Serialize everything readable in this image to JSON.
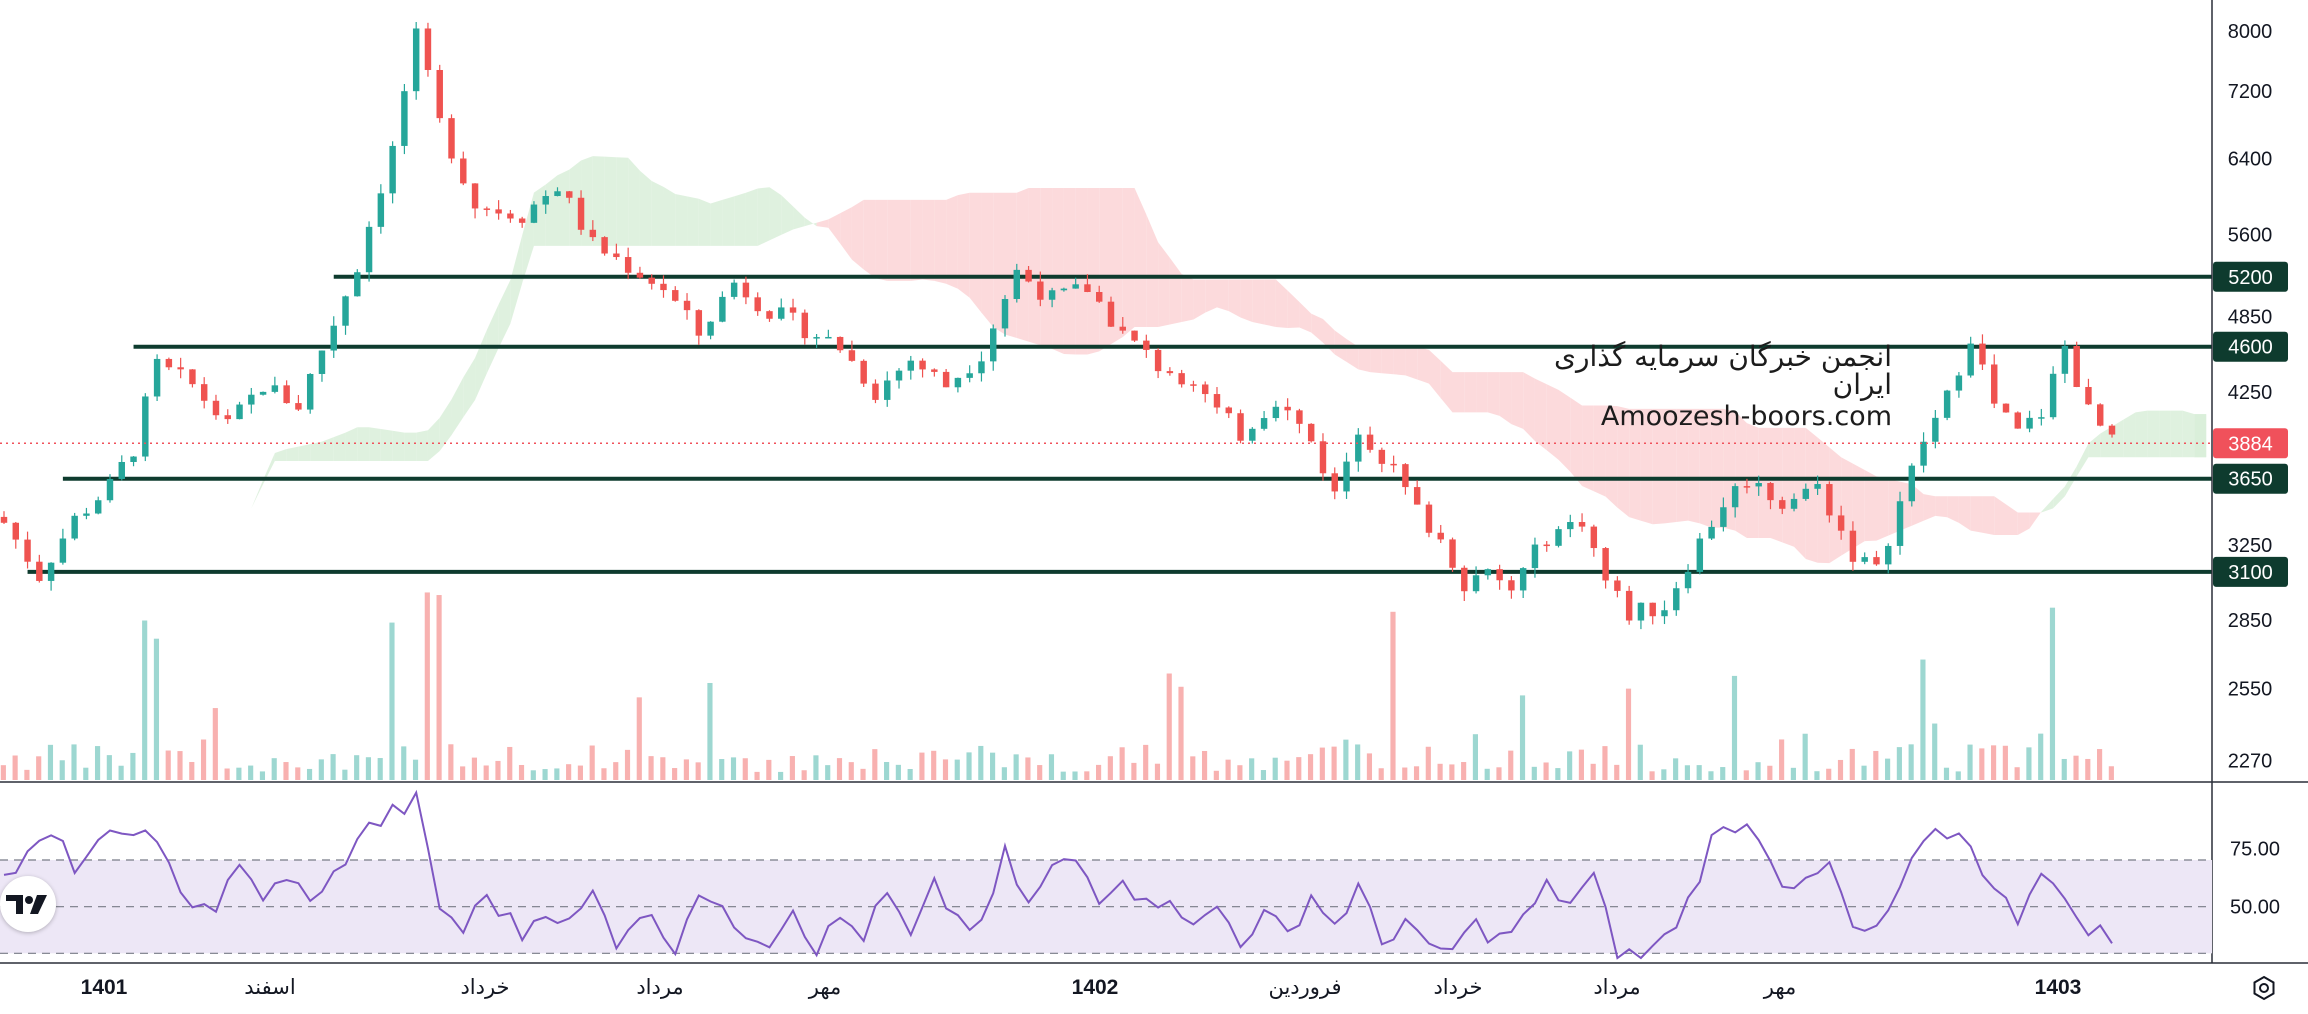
{
  "watermark": {
    "persian": "انجمن خبرگان سرمایه گذاری ایران",
    "english": "Amoozesh-boors.com"
  },
  "icons": {
    "logo": "tradingview-logo-icon",
    "settings": "settings-hexagon-icon"
  },
  "colors": {
    "up": "#26a69a",
    "down": "#ef5350",
    "level_line": "#0e3b2e",
    "price_tag": "#f0515b",
    "rsi_line": "#7e57c2",
    "rsi_band": "#ede7f6",
    "cloud_bull": "#d9eed9",
    "cloud_bear": "#fbd3d6"
  },
  "chart_data": [
    {
      "type": "candlestick",
      "title": "",
      "y_scale": "log",
      "ylim": [
        2800,
        8300
      ],
      "price_axis_ticks": [
        8000,
        7200,
        6400,
        5600,
        4850,
        4250,
        3250,
        2850,
        2550,
        2270
      ],
      "time_axis_labels": [
        "1401",
        "اسفند",
        "خرداد",
        "مرداد",
        "مهر",
        "1402",
        "فروردین",
        "خرداد",
        "مرداد",
        "مهر",
        "1403"
      ],
      "current_price": 3884,
      "horizontal_levels": [
        {
          "label": "5200",
          "value": 5200,
          "start_index": 28
        },
        {
          "label": "4600",
          "value": 4600,
          "start_index": 11
        },
        {
          "label": "3650",
          "value": 3650,
          "start_index": 5
        },
        {
          "label": "3100",
          "value": 3100,
          "start_index": 2
        }
      ],
      "overlays": [
        "ichimoku cloud",
        "volume histogram"
      ],
      "price_path_anchors": [
        [
          0,
          3380
        ],
        [
          3,
          3080
        ],
        [
          6,
          3400
        ],
        [
          9,
          3600
        ],
        [
          11,
          3850
        ],
        [
          13,
          4450
        ],
        [
          16,
          4300
        ],
        [
          19,
          4000
        ],
        [
          22,
          4300
        ],
        [
          25,
          4150
        ],
        [
          28,
          4800
        ],
        [
          30,
          5300
        ],
        [
          33,
          6500
        ],
        [
          35,
          7900
        ],
        [
          37,
          6800
        ],
        [
          40,
          5900
        ],
        [
          44,
          5800
        ],
        [
          47,
          6100
        ],
        [
          50,
          5500
        ],
        [
          53,
          5300
        ],
        [
          56,
          5100
        ],
        [
          59,
          4700
        ],
        [
          62,
          5150
        ],
        [
          65,
          4900
        ],
        [
          68,
          4750
        ],
        [
          71,
          4600
        ],
        [
          74,
          4250
        ],
        [
          77,
          4500
        ],
        [
          80,
          4300
        ],
        [
          83,
          4550
        ],
        [
          86,
          5250
        ],
        [
          89,
          5000
        ],
        [
          92,
          5100
        ],
        [
          95,
          4700
        ],
        [
          98,
          4450
        ],
        [
          101,
          4350
        ],
        [
          103,
          4100
        ],
        [
          105,
          3950
        ],
        [
          108,
          4200
        ],
        [
          111,
          3900
        ],
        [
          113,
          3550
        ],
        [
          115,
          4000
        ],
        [
          118,
          3700
        ],
        [
          120,
          3450
        ],
        [
          122,
          3280
        ],
        [
          124,
          3050
        ],
        [
          126,
          3080
        ],
        [
          128,
          3000
        ],
        [
          131,
          3300
        ],
        [
          134,
          3400
        ],
        [
          136,
          3050
        ],
        [
          138,
          2880
        ],
        [
          141,
          2920
        ],
        [
          143,
          3150
        ],
        [
          146,
          3500
        ],
        [
          148,
          3650
        ],
        [
          151,
          3500
        ],
        [
          154,
          3600
        ],
        [
          157,
          3200
        ],
        [
          159,
          3100
        ],
        [
          161,
          3500
        ],
        [
          163,
          3900
        ],
        [
          165,
          4200
        ],
        [
          167,
          4700
        ],
        [
          169,
          4150
        ],
        [
          171,
          3950
        ],
        [
          173,
          4100
        ],
        [
          175,
          4600
        ],
        [
          177,
          4100
        ],
        [
          179,
          3884
        ]
      ]
    },
    {
      "type": "line",
      "title": "",
      "ylim": [
        28,
        100
      ],
      "axis_ticks": [
        75.0,
        50.0
      ],
      "band": [
        30,
        70
      ],
      "series_anchors": [
        [
          0,
          62
        ],
        [
          4,
          80
        ],
        [
          6,
          68
        ],
        [
          8,
          75
        ],
        [
          11,
          85
        ],
        [
          13,
          74
        ],
        [
          16,
          52
        ],
        [
          18,
          50
        ],
        [
          20,
          66
        ],
        [
          22,
          55
        ],
        [
          24,
          60
        ],
        [
          27,
          54
        ],
        [
          30,
          80
        ],
        [
          33,
          90
        ],
        [
          35,
          95
        ],
        [
          37,
          50
        ],
        [
          39,
          40
        ],
        [
          41,
          55
        ],
        [
          44,
          38
        ],
        [
          46,
          50
        ],
        [
          48,
          42
        ],
        [
          50,
          55
        ],
        [
          52,
          36
        ],
        [
          54,
          48
        ],
        [
          57,
          34
        ],
        [
          59,
          58
        ],
        [
          61,
          46
        ],
        [
          63,
          40
        ],
        [
          65,
          36
        ],
        [
          67,
          50
        ],
        [
          69,
          32
        ],
        [
          71,
          45
        ],
        [
          73,
          38
        ],
        [
          75,
          55
        ],
        [
          77,
          36
        ],
        [
          79,
          58
        ],
        [
          81,
          45
        ],
        [
          83,
          40
        ],
        [
          85,
          72
        ],
        [
          87,
          50
        ],
        [
          89,
          66
        ],
        [
          91,
          70
        ],
        [
          93,
          55
        ],
        [
          95,
          64
        ],
        [
          97,
          50
        ],
        [
          99,
          56
        ],
        [
          101,
          40
        ],
        [
          103,
          50
        ],
        [
          105,
          36
        ],
        [
          107,
          46
        ],
        [
          109,
          38
        ],
        [
          111,
          55
        ],
        [
          113,
          42
        ],
        [
          115,
          58
        ],
        [
          117,
          34
        ],
        [
          119,
          45
        ],
        [
          121,
          30
        ],
        [
          123,
          32
        ],
        [
          125,
          42
        ],
        [
          127,
          36
        ],
        [
          129,
          44
        ],
        [
          131,
          58
        ],
        [
          133,
          52
        ],
        [
          135,
          62
        ],
        [
          137,
          30
        ],
        [
          139,
          28
        ],
        [
          141,
          36
        ],
        [
          143,
          52
        ],
        [
          145,
          78
        ],
        [
          147,
          86
        ],
        [
          149,
          82
        ],
        [
          151,
          62
        ],
        [
          153,
          58
        ],
        [
          155,
          68
        ],
        [
          157,
          40
        ],
        [
          159,
          38
        ],
        [
          161,
          58
        ],
        [
          163,
          76
        ],
        [
          165,
          82
        ],
        [
          167,
          78
        ],
        [
          169,
          56
        ],
        [
          171,
          46
        ],
        [
          173,
          68
        ],
        [
          175,
          50
        ],
        [
          177,
          42
        ],
        [
          179,
          36
        ]
      ]
    }
  ]
}
